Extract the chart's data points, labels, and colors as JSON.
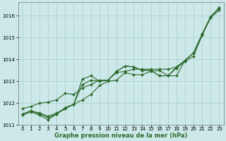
{
  "title": "Graphe pression niveau de la mer (hPa)",
  "bg_color": "#cce8e8",
  "grid_color": "#aacfcf",
  "line_color": "#2d6a2d",
  "xlim": [
    -0.5,
    23.5
  ],
  "ylim": [
    1011.0,
    1016.6
  ],
  "yticks": [
    1011,
    1012,
    1013,
    1014,
    1015,
    1016
  ],
  "xticks": [
    0,
    1,
    2,
    3,
    4,
    5,
    6,
    7,
    8,
    9,
    10,
    11,
    12,
    13,
    14,
    15,
    16,
    17,
    18,
    19,
    20,
    21,
    22,
    23
  ],
  "lines": [
    [
      1011.5,
      1011.65,
      1011.55,
      1011.4,
      1011.55,
      1011.75,
      1011.95,
      1012.85,
      1013.05,
      1013.0,
      1013.05,
      1013.45,
      1013.7,
      1013.65,
      1013.5,
      1013.5,
      1013.25,
      1013.25,
      1013.65,
      1013.95,
      1014.3,
      1015.15,
      1015.95,
      1016.35
    ],
    [
      1011.5,
      1011.65,
      1011.5,
      1011.35,
      1011.5,
      1011.75,
      1011.95,
      1013.1,
      1013.25,
      1013.0,
      1013.05,
      1013.45,
      1013.7,
      1013.65,
      1013.5,
      1013.5,
      1013.25,
      1013.25,
      1013.6,
      1013.9,
      1014.15,
      1015.1,
      1015.9,
      1016.25
    ],
    [
      1011.45,
      1011.6,
      1011.45,
      1011.25,
      1011.5,
      1011.8,
      1011.95,
      1012.15,
      1012.4,
      1012.8,
      1013.0,
      1013.05,
      1013.4,
      1013.3,
      1013.3,
      1013.45,
      1013.5,
      1013.25,
      1013.25,
      1013.95,
      1014.3,
      1015.15,
      1015.95,
      1016.35
    ],
    [
      1011.75,
      1011.85,
      1012.0,
      1012.05,
      1012.15,
      1012.45,
      1012.4,
      1012.7,
      1012.85,
      1013.05,
      1013.05,
      1013.4,
      1013.45,
      1013.55,
      1013.55,
      1013.55,
      1013.55,
      1013.55,
      1013.65,
      1013.95,
      1014.3,
      1015.15,
      1015.95,
      1016.35
    ]
  ],
  "figsize": [
    3.2,
    2.0
  ],
  "dpi": 100,
  "marker": "D",
  "markersize": 2.0,
  "linewidth": 0.8,
  "tick_labelsize": 5,
  "xlabel_fontsize": 6,
  "ylabel_fontsize": 5
}
